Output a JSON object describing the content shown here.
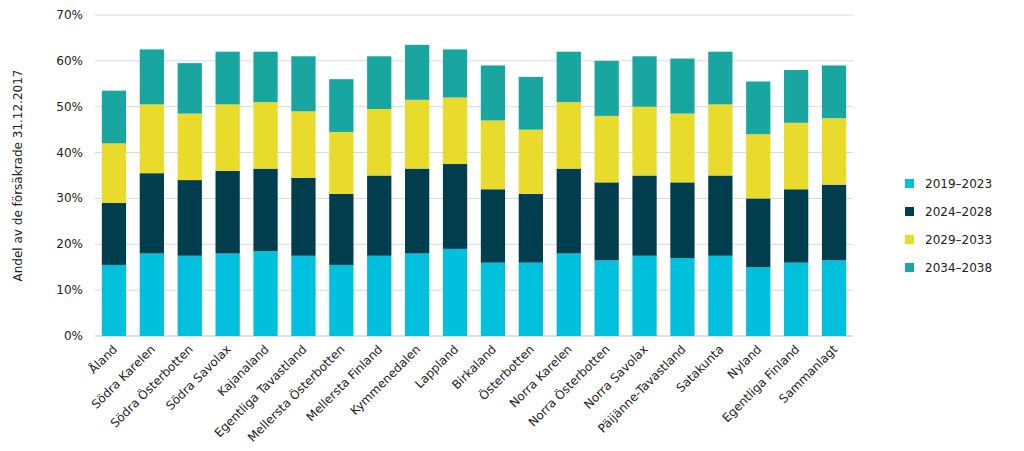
{
  "chart_data": {
    "type": "bar",
    "stacked": true,
    "grid": true,
    "legend": "right",
    "y_label": "Andel av de försäkrade 31.12.2017",
    "categories": [
      "Åland",
      "Södra Karelen",
      "Södra Österbotten",
      "Södra Savolax",
      "Kajanaland",
      "Egentliga Tavastland",
      "Mellersta Österbotten",
      "Mellersta Finland",
      "Kymmenedalen",
      "Lappland",
      "Birkaland",
      "Österbotten",
      "Norra Karelen",
      "Norra Österbotten",
      "Norra Savolax",
      "Päijänne-Tavastland",
      "Satakunta",
      "Nyland",
      "Egentliga Finland",
      "Sammanlagt"
    ],
    "series": [
      {
        "name": "2019–2023",
        "color": "#00c0de",
        "values": [
          15.5,
          18,
          17.5,
          18,
          18.5,
          17.5,
          15.5,
          17.5,
          18,
          19,
          16,
          16,
          18,
          16.5,
          17.5,
          17,
          17.5,
          15,
          16,
          16.5
        ]
      },
      {
        "name": "2024–2028",
        "color": "#003d4d",
        "values": [
          13.5,
          17.5,
          16.5,
          18,
          18,
          17,
          15.5,
          17.5,
          18.5,
          18.5,
          16,
          15,
          18.5,
          17,
          17.5,
          16.5,
          17.5,
          15,
          16,
          16.5
        ]
      },
      {
        "name": "2029–2033",
        "color": "#e8db2b",
        "values": [
          13,
          15,
          14.5,
          14.5,
          14.5,
          14.5,
          13.5,
          14.5,
          15,
          14.5,
          15,
          14,
          14.5,
          14.5,
          15,
          15,
          15.5,
          14,
          14.5,
          14.5
        ]
      },
      {
        "name": "2034–2038",
        "color": "#1aa6a0",
        "values": [
          11.5,
          12,
          11,
          11.5,
          11,
          12,
          11.5,
          11.5,
          12,
          10.5,
          12,
          11.5,
          11,
          12,
          11,
          12,
          11.5,
          11.5,
          11.5,
          11.5
        ]
      }
    ],
    "ylim": [
      0,
      70
    ],
    "yticks": [
      {
        "value": 0,
        "label": "0%"
      },
      {
        "value": 10,
        "label": "10%"
      },
      {
        "value": 20,
        "label": "20%"
      },
      {
        "value": 30,
        "label": "30%"
      },
      {
        "value": 40,
        "label": "40%"
      },
      {
        "value": 50,
        "label": "50%"
      },
      {
        "value": 60,
        "label": "60%"
      },
      {
        "value": 70,
        "label": "70%"
      }
    ]
  }
}
